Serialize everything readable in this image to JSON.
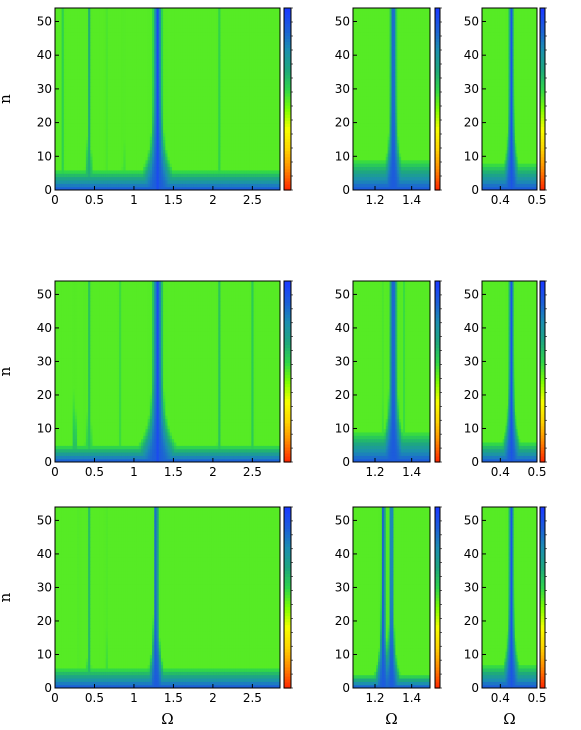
{
  "figure": {
    "grid": "3x3",
    "colormap_stops": [
      "#ff2a00",
      "#ff8a00",
      "#ffd400",
      "#f6ff00",
      "#7cff00",
      "#2fd64a",
      "#1ea87e",
      "#1c8fb0",
      "#1c5fd8",
      "#1a3cff"
    ]
  },
  "chart_data": [
    {
      "type": "heatmap",
      "panel": "row1-wide",
      "ylabel": "n",
      "xlabel": "",
      "xlim": [
        0,
        2.85
      ],
      "ylim": [
        0,
        54
      ],
      "xticks": [
        "0",
        "0.5",
        "1",
        "1.5",
        "2",
        "2.5"
      ],
      "xtick_values": [
        0,
        0.5,
        1,
        1.5,
        2,
        2.5
      ],
      "yticks": [
        "0",
        "10",
        "20",
        "30",
        "40",
        "50"
      ],
      "ytick_values": [
        0,
        10,
        20,
        30,
        40,
        50
      ],
      "resonances": [
        {
          "omega": 1.3,
          "strength": 1.0,
          "width": 0.04
        },
        {
          "omega": 0.43,
          "strength": 0.55,
          "width": 0.015
        },
        {
          "omega": 0.1,
          "strength": 0.3,
          "width": 0.01
        },
        {
          "omega": 0.65,
          "strength": 0.3,
          "width": 0.01
        },
        {
          "omega": 0.87,
          "strength": 0.35,
          "width": 0.01
        },
        {
          "omega": 2.08,
          "strength": 0.25,
          "width": 0.01
        }
      ],
      "base_height": 6,
      "background_level": 0.1
    },
    {
      "type": "heatmap",
      "panel": "row1-zoom-a",
      "ylabel": "",
      "xlabel": "",
      "xlim": [
        1.08,
        1.5
      ],
      "ylim": [
        0,
        54
      ],
      "xticks": [
        "1.2",
        "1.4"
      ],
      "xtick_values": [
        1.2,
        1.4
      ],
      "yticks": [
        "0",
        "10",
        "20",
        "30",
        "40",
        "50"
      ],
      "ytick_values": [
        0,
        10,
        20,
        30,
        40,
        50
      ],
      "resonances": [
        {
          "omega": 1.3,
          "strength": 1.0,
          "width": 0.012
        }
      ],
      "base_height": 9,
      "background_level": 0.1
    },
    {
      "type": "heatmap",
      "panel": "row1-zoom-b",
      "ylabel": "",
      "xlabel": "",
      "xlim": [
        0.35,
        0.5
      ],
      "ylim": [
        0,
        54
      ],
      "xticks": [
        "0.4",
        "0.5"
      ],
      "xtick_values": [
        0.4,
        0.5
      ],
      "yticks": [
        "0",
        "10",
        "20",
        "30",
        "40",
        "50"
      ],
      "ytick_values": [
        0,
        10,
        20,
        30,
        40,
        50
      ],
      "resonances": [
        {
          "omega": 0.43,
          "strength": 1.0,
          "width": 0.005
        }
      ],
      "base_height": 8,
      "background_level": 0.1
    },
    {
      "type": "heatmap",
      "panel": "row2-wide",
      "ylabel": "n",
      "xlabel": "",
      "xlim": [
        0,
        2.85
      ],
      "ylim": [
        0,
        54
      ],
      "xticks": [
        "0",
        "0.5",
        "1",
        "1.5",
        "2",
        "2.5"
      ],
      "xtick_values": [
        0,
        0.5,
        1,
        1.5,
        2,
        2.5
      ],
      "yticks": [
        "0",
        "10",
        "20",
        "30",
        "40",
        "50"
      ],
      "ytick_values": [
        0,
        10,
        20,
        30,
        40,
        50
      ],
      "resonances": [
        {
          "omega": 1.3,
          "strength": 1.0,
          "width": 0.045
        },
        {
          "omega": 0.25,
          "strength": 0.5,
          "width": 0.01
        },
        {
          "omega": 0.43,
          "strength": 0.4,
          "width": 0.02
        },
        {
          "omega": 0.82,
          "strength": 0.3,
          "width": 0.01
        },
        {
          "omega": 2.08,
          "strength": 0.4,
          "width": 0.01
        },
        {
          "omega": 2.5,
          "strength": 0.3,
          "width": 0.01
        }
      ],
      "base_height": 5,
      "background_level": 0.12
    },
    {
      "type": "heatmap",
      "panel": "row2-zoom-a",
      "ylabel": "",
      "xlabel": "",
      "xlim": [
        1.08,
        1.5
      ],
      "ylim": [
        0,
        54
      ],
      "xticks": [
        "1.2",
        "1.4"
      ],
      "xtick_values": [
        1.2,
        1.4
      ],
      "yticks": [
        "0",
        "10",
        "20",
        "30",
        "40",
        "50"
      ],
      "ytick_values": [
        0,
        10,
        20,
        30,
        40,
        50
      ],
      "resonances": [
        {
          "omega": 1.3,
          "strength": 1.0,
          "width": 0.014
        },
        {
          "omega": 1.24,
          "strength": 0.35,
          "width": 0.004
        },
        {
          "omega": 1.36,
          "strength": 0.35,
          "width": 0.004
        }
      ],
      "base_height": 9,
      "background_level": 0.08
    },
    {
      "type": "heatmap",
      "panel": "row2-zoom-b",
      "ylabel": "",
      "xlabel": "",
      "xlim": [
        0.35,
        0.5
      ],
      "ylim": [
        0,
        54
      ],
      "xticks": [
        "0.4",
        "0.5"
      ],
      "xtick_values": [
        0.4,
        0.5
      ],
      "yticks": [
        "0",
        "10",
        "20",
        "30",
        "40",
        "50"
      ],
      "ytick_values": [
        0,
        10,
        20,
        30,
        40,
        50
      ],
      "resonances": [
        {
          "omega": 0.43,
          "strength": 1.0,
          "width": 0.005
        }
      ],
      "base_height": 6,
      "background_level": 0.08
    },
    {
      "type": "heatmap",
      "panel": "row3-wide",
      "ylabel": "n",
      "xlabel": "Ω",
      "xlim": [
        0,
        2.85
      ],
      "ylim": [
        0,
        54
      ],
      "xticks": [
        "0",
        "0.5",
        "1",
        "1.5",
        "2",
        "2.5"
      ],
      "xtick_values": [
        0,
        0.5,
        1,
        1.5,
        2,
        2.5
      ],
      "yticks": [
        "0",
        "10",
        "20",
        "30",
        "40",
        "50"
      ],
      "ytick_values": [
        0,
        10,
        20,
        30,
        40,
        50
      ],
      "resonances": [
        {
          "omega": 1.28,
          "strength": 1.0,
          "width": 0.02
        },
        {
          "omega": 0.43,
          "strength": 0.5,
          "width": 0.01
        },
        {
          "omega": 0.65,
          "strength": 0.35,
          "width": 0.008
        },
        {
          "omega": 0.3,
          "strength": 0.25,
          "width": 0.008
        }
      ],
      "base_height": 6,
      "background_level": 0.1,
      "green_region_from": 1.23,
      "green_region_level": 0.5
    },
    {
      "type": "heatmap",
      "panel": "row3-zoom-a",
      "ylabel": "",
      "xlabel": "Ω",
      "xlim": [
        1.08,
        1.5
      ],
      "ylim": [
        0,
        54
      ],
      "xticks": [
        "1.2",
        "1.4"
      ],
      "xtick_values": [
        1.2,
        1.4
      ],
      "yticks": [
        "0",
        "10",
        "20",
        "30",
        "40",
        "50"
      ],
      "ytick_values": [
        0,
        10,
        20,
        30,
        40,
        50
      ],
      "resonances": [
        {
          "omega": 1.245,
          "strength": 1.0,
          "width": 0.008
        },
        {
          "omega": 1.29,
          "strength": 1.0,
          "width": 0.008
        }
      ],
      "base_height": 4,
      "background_level": 0.1,
      "green_region_from": 1.17,
      "green_region_level": 0.5
    },
    {
      "type": "heatmap",
      "panel": "row3-zoom-b",
      "ylabel": "",
      "xlabel": "Ω",
      "xlim": [
        0.35,
        0.5
      ],
      "ylim": [
        0,
        54
      ],
      "xticks": [
        "0.4",
        "0.5"
      ],
      "xtick_values": [
        0.4,
        0.5
      ],
      "yticks": [
        "0",
        "10",
        "20",
        "30",
        "40",
        "50"
      ],
      "ytick_values": [
        0,
        10,
        20,
        30,
        40,
        50
      ],
      "resonances": [
        {
          "omega": 0.43,
          "strength": 1.0,
          "width": 0.005
        }
      ],
      "base_height": 7,
      "background_level": 0.1
    }
  ]
}
